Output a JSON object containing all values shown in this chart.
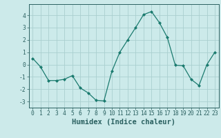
{
  "x": [
    0,
    1,
    2,
    3,
    4,
    5,
    6,
    7,
    8,
    9,
    10,
    11,
    12,
    13,
    14,
    15,
    16,
    17,
    18,
    19,
    20,
    21,
    22,
    23
  ],
  "y": [
    0.5,
    -0.2,
    -1.3,
    -1.3,
    -1.2,
    -0.9,
    -1.9,
    -2.3,
    -2.9,
    -2.95,
    -0.55,
    1.0,
    2.0,
    3.0,
    4.05,
    4.3,
    3.4,
    2.2,
    -0.05,
    -0.1,
    -1.2,
    -1.7,
    0.0,
    1.0
  ],
  "xlabel": "Humidex (Indice chaleur)",
  "ylabel": "",
  "xlim": [
    -0.5,
    23.5
  ],
  "ylim": [
    -3.5,
    4.9
  ],
  "yticks": [
    -3,
    -2,
    -1,
    0,
    1,
    2,
    3,
    4
  ],
  "xticks": [
    0,
    1,
    2,
    3,
    4,
    5,
    6,
    7,
    8,
    9,
    10,
    11,
    12,
    13,
    14,
    15,
    16,
    17,
    18,
    19,
    20,
    21,
    22,
    23
  ],
  "line_color": "#1a7a6e",
  "marker_color": "#1a7a6e",
  "bg_color": "#cceaea",
  "grid_color": "#aacfcf",
  "axis_color": "#2a6060",
  "tick_label_fontsize": 5.8,
  "xlabel_fontsize": 7.5
}
